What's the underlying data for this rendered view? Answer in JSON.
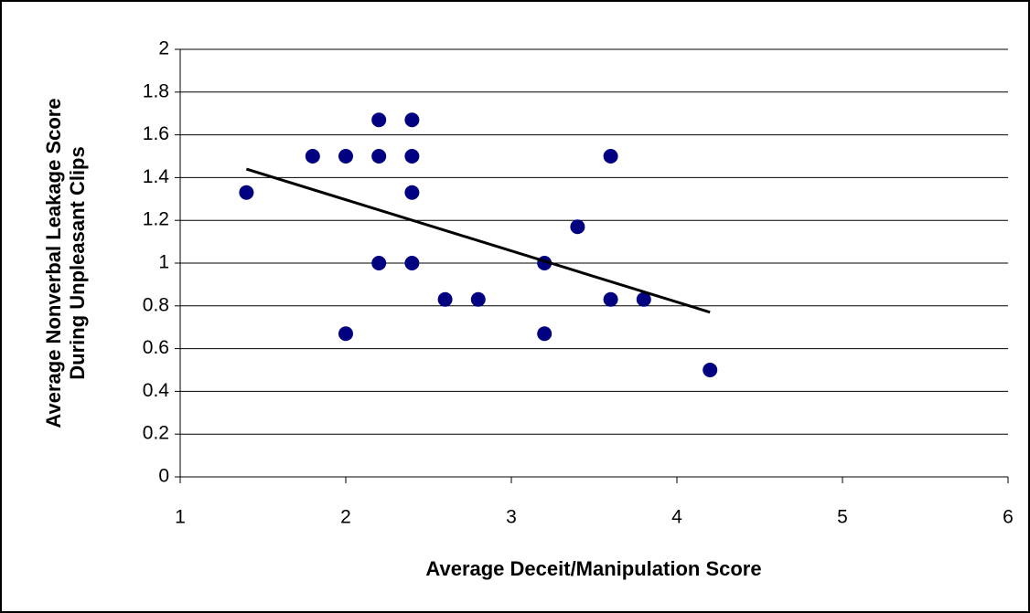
{
  "chart_data": {
    "type": "scatter",
    "xlabel": "Average Deceit/Manipulation Score",
    "ylabel": [
      "Average Nonverbal Leakage Score",
      "During Unpleasant Clips"
    ],
    "series": [
      {
        "color": "#000080",
        "x": [
          1.4,
          1.8,
          2.0,
          2.2,
          2.2,
          2.4,
          2.4,
          2.4,
          2.2,
          2.4,
          2.0,
          2.6,
          2.8,
          3.2,
          3.2,
          3.4,
          3.6,
          3.6,
          3.8,
          4.2
        ],
        "y": [
          1.33,
          1.5,
          1.5,
          1.5,
          1.67,
          1.67,
          1.5,
          1.33,
          1.0,
          1.0,
          0.67,
          0.83,
          0.83,
          1.0,
          0.67,
          1.17,
          1.5,
          0.83,
          0.83,
          0.5
        ]
      }
    ],
    "trendline": {
      "color": "#000000",
      "x": [
        1.4,
        4.2
      ],
      "y": [
        1.44,
        0.77
      ]
    },
    "xlim": [
      1,
      6
    ],
    "xticks": [
      1,
      2,
      3,
      4,
      5,
      6
    ],
    "ylim": [
      0,
      2
    ],
    "yticks": [
      0,
      0.2,
      0.4,
      0.6,
      0.8,
      1,
      1.2,
      1.4,
      1.6,
      1.8,
      2
    ],
    "grid": true
  }
}
